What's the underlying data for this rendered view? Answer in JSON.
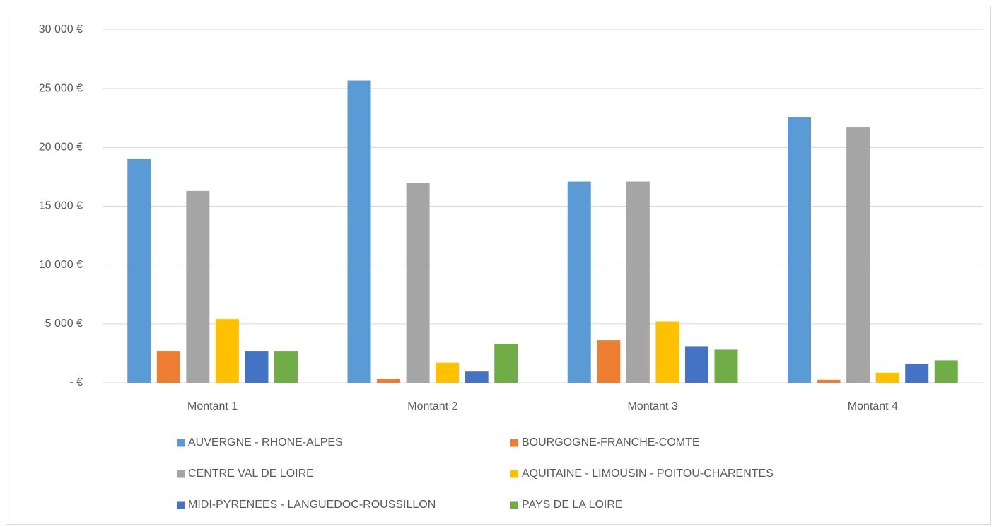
{
  "chart_data": {
    "type": "bar",
    "categories": [
      "Montant 1",
      "Montant 2",
      "Montant 3",
      "Montant 4"
    ],
    "series": [
      {
        "name": "AUVERGNE - RHONE-ALPES",
        "color": "#5b9bd5",
        "values": [
          19000,
          25700,
          17100,
          22600
        ]
      },
      {
        "name": "BOURGOGNE-FRANCHE-COMTE",
        "color": "#ed7d31",
        "values": [
          2700,
          300,
          3600,
          250
        ]
      },
      {
        "name": "CENTRE VAL DE LOIRE",
        "color": "#a5a5a5",
        "values": [
          16300,
          17000,
          17100,
          21700
        ]
      },
      {
        "name": "AQUITAINE - LIMOUSIN - POITOU-CHARENTES",
        "color": "#ffc000",
        "values": [
          5400,
          1700,
          5200,
          850
        ]
      },
      {
        "name": "MIDI-PYRENEES - LANGUEDOC-ROUSSILLON",
        "color": "#4472c4",
        "values": [
          2700,
          950,
          3100,
          1600
        ]
      },
      {
        "name": "PAYS DE LA LOIRE",
        "color": "#70ad47",
        "values": [
          2700,
          3300,
          2800,
          1900
        ]
      }
    ],
    "ylim": [
      0,
      30000
    ],
    "yticks": [
      {
        "value": 0,
        "label": "-  €"
      },
      {
        "value": 5000,
        "label": "5 000 €"
      },
      {
        "value": 10000,
        "label": "10 000 €"
      },
      {
        "value": 15000,
        "label": "15 000 €"
      },
      {
        "value": 20000,
        "label": "20 000 €"
      },
      {
        "value": 25000,
        "label": "25 000 €"
      },
      {
        "value": 30000,
        "label": "30 000 €"
      }
    ],
    "grid": true,
    "legend": "bottom"
  }
}
